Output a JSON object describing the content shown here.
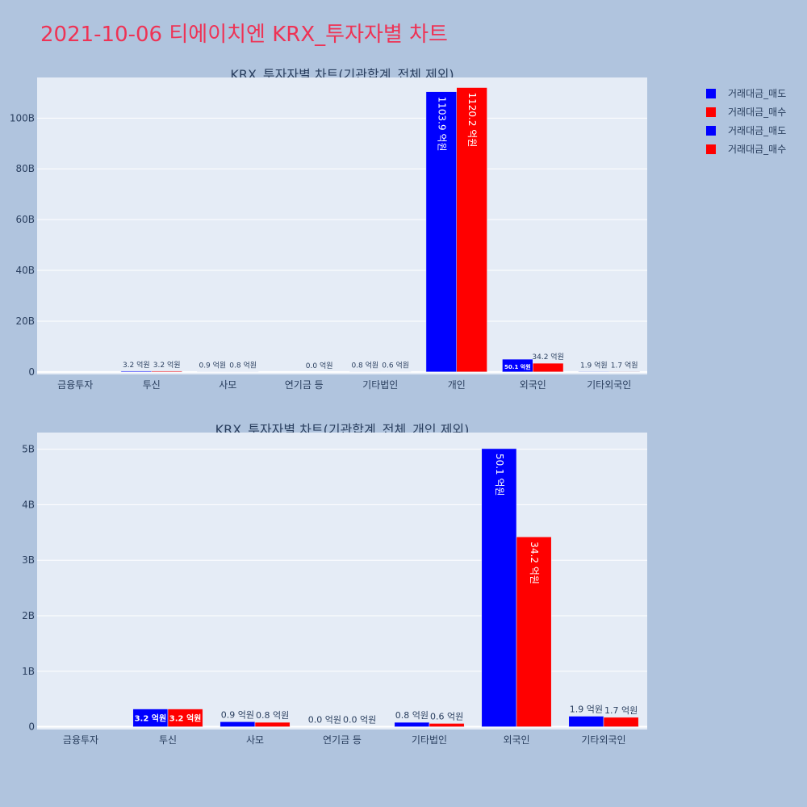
{
  "title": "2021-10-06 티에이치엔 KRX_투자자별 차트",
  "legend": [
    {
      "label": "거래대금_매도",
      "color": "#0000ff"
    },
    {
      "label": "거래대금_매수",
      "color": "#ff0000"
    },
    {
      "label": "거래대금_매도",
      "color": "#0000ff"
    },
    {
      "label": "거래대금_매수",
      "color": "#ff0000"
    }
  ],
  "chart_data": [
    {
      "type": "bar",
      "title": "KRX_투자자별 차트(기관합계_전체 제외)",
      "categories": [
        "금융투자",
        "투신",
        "사모",
        "연기금 등",
        "기타법인",
        "개인",
        "외국인",
        "기타외국인"
      ],
      "series": [
        {
          "name": "거래대금_매도",
          "color": "#0000ff",
          "values": [
            0,
            0.32,
            0.09,
            0,
            0.08,
            110.39,
            5.01,
            0.19
          ],
          "labels": [
            "",
            "3.2 억원",
            "0.9 억원",
            "",
            "0.8 억원",
            "1103.9 억원",
            "50.1 억원",
            "1.9 억원"
          ]
        },
        {
          "name": "거래대금_매수",
          "color": "#ff0000",
          "values": [
            0,
            0.32,
            0.08,
            0,
            0.06,
            112.02,
            3.42,
            0.17
          ],
          "labels": [
            "",
            "3.2 억원",
            "0.8 억원",
            "0.0 억원",
            "0.6 억원",
            "1120.2 억원",
            "34.2 억원",
            "1.7 억원"
          ]
        }
      ],
      "yticks": [
        "0",
        "20B",
        "40B",
        "60B",
        "80B",
        "100B"
      ],
      "ytick_values": [
        0,
        20,
        40,
        60,
        80,
        100
      ],
      "ylim": [
        -1,
        116
      ],
      "unit": "B"
    },
    {
      "type": "bar",
      "title": "KRX_투자자별 차트(기관합계_전체_개인 제외)",
      "categories": [
        "금융투자",
        "투신",
        "사모",
        "연기금 등",
        "기타법인",
        "외국인",
        "기타외국인"
      ],
      "series": [
        {
          "name": "거래대금_매도",
          "color": "#0000ff",
          "values": [
            0,
            0.32,
            0.09,
            0,
            0.08,
            5.01,
            0.19
          ],
          "labels": [
            "",
            "3.2 억원",
            "0.9 억원",
            "0.0 억원",
            "0.8 억원",
            "50.1 억원",
            "1.9 억원"
          ]
        },
        {
          "name": "거래대금_매수",
          "color": "#ff0000",
          "values": [
            0,
            0.32,
            0.08,
            0,
            0.06,
            3.42,
            0.17
          ],
          "labels": [
            "",
            "3.2 억원",
            "0.8 억원",
            "0.0 억원",
            "0.6 억원",
            "34.2 억원",
            "1.7 억원"
          ]
        }
      ],
      "yticks": [
        "0",
        "1B",
        "2B",
        "3B",
        "4B",
        "5B"
      ],
      "ytick_values": [
        0,
        1,
        2,
        3,
        4,
        5
      ],
      "ylim": [
        -0.05,
        5.3
      ],
      "unit": "B"
    }
  ]
}
